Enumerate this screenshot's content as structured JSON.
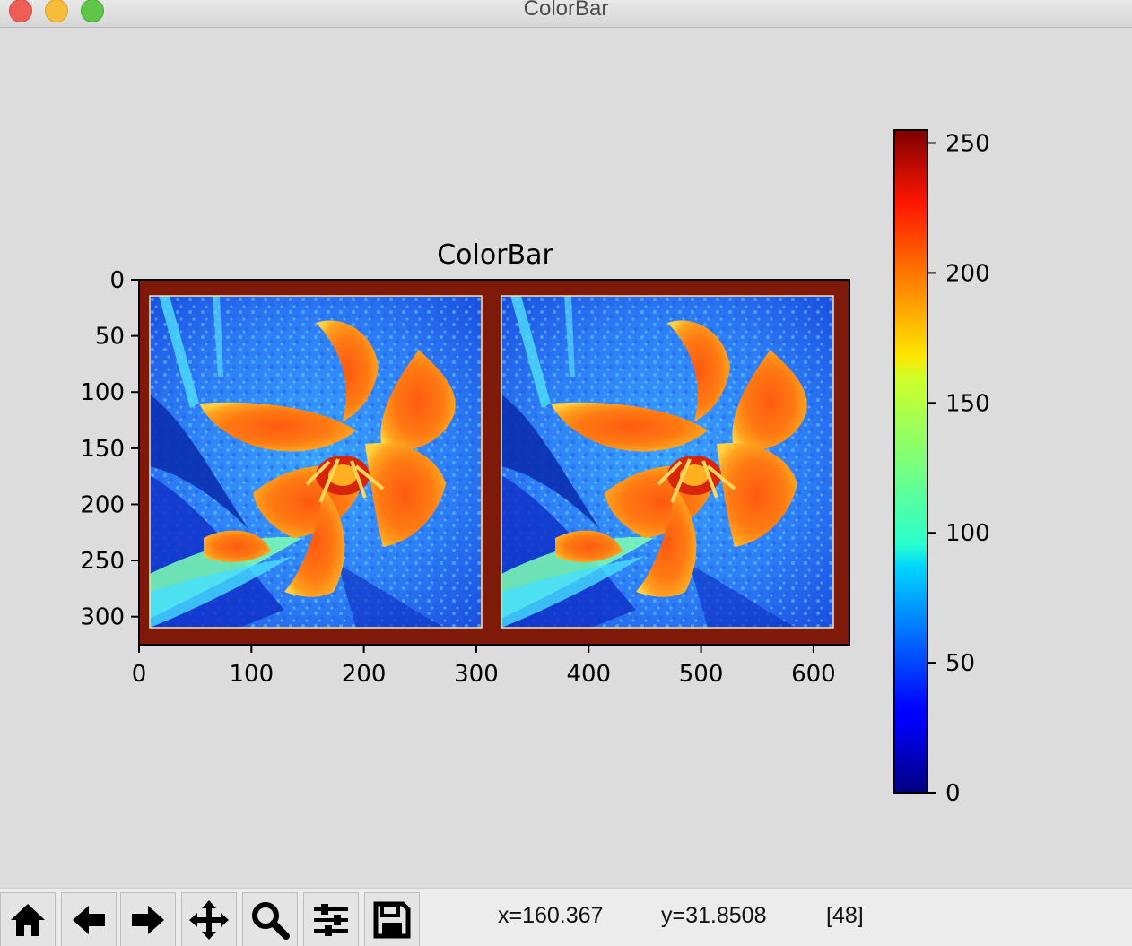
{
  "window": {
    "title": "ColorBar"
  },
  "chart_data": {
    "type": "heatmap",
    "title": "ColorBar",
    "colormap": "jet",
    "frame_value": 250,
    "xticks": [
      0,
      100,
      200,
      300,
      400,
      500,
      600
    ],
    "yticks": [
      0,
      50,
      100,
      150,
      200,
      250,
      300
    ],
    "xlim": [
      0,
      632
    ],
    "ylim": [
      325,
      0
    ],
    "images": [
      {
        "name": "left-image",
        "x_range": [
          10,
          305
        ],
        "y_range": [
          15,
          310
        ]
      },
      {
        "name": "right-image",
        "x_range": [
          322,
          617
        ],
        "y_range": [
          15,
          310
        ]
      }
    ],
    "colorbar": {
      "ticks": [
        0,
        50,
        100,
        150,
        200,
        250
      ],
      "vmin": 0,
      "vmax": 255
    }
  },
  "toolbar": {
    "buttons": [
      {
        "name": "home-button",
        "icon": "home-icon"
      },
      {
        "name": "back-button",
        "icon": "arrow-left-icon"
      },
      {
        "name": "forward-button",
        "icon": "arrow-right-icon"
      },
      {
        "name": "pan-button",
        "icon": "move-icon"
      },
      {
        "name": "zoom-button",
        "icon": "magnifier-icon"
      },
      {
        "name": "configure-subplots-button",
        "icon": "sliders-icon"
      },
      {
        "name": "save-button",
        "icon": "floppy-disk-icon"
      }
    ],
    "x_readout": "x=160.367",
    "y_readout": "y=31.8508",
    "value_readout": "[48]"
  }
}
